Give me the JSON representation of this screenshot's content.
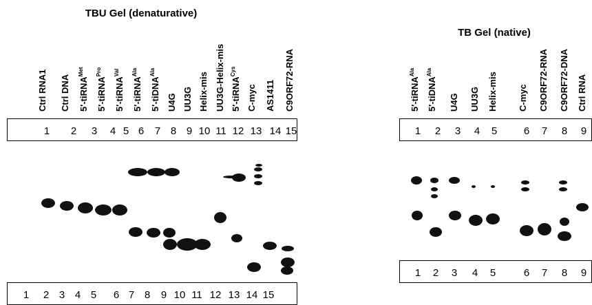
{
  "left_panel": {
    "title": "TBU Gel (denaturative)",
    "lanes": [
      {
        "label": "Ctrl RNA1"
      },
      {
        "label": "Ctrl DNA"
      },
      {
        "label": "5′-tiRNA",
        "sup": "Met"
      },
      {
        "label": "5′-tiRNA",
        "sup": "Pro"
      },
      {
        "label": "5′-tiRNA",
        "sup": "Val"
      },
      {
        "label": "5′-tiRNA",
        "sup": "Ala"
      },
      {
        "label": "5′-tiDNA",
        "sup": "Ala"
      },
      {
        "label": "U4G"
      },
      {
        "label": "UU3G"
      },
      {
        "label": "Helix-mis"
      },
      {
        "label": "UU3G-Helix-mis"
      },
      {
        "label": "5′-tiRNA",
        "sup": "Cys"
      },
      {
        "label": "C-myc"
      },
      {
        "label": "AS1411"
      },
      {
        "label": "C9ORF72-RNA"
      }
    ],
    "top_numbers": [
      1,
      2,
      3,
      4,
      5,
      6,
      7,
      8,
      9,
      10,
      11,
      12,
      13,
      14,
      15
    ],
    "bottom_numbers": [
      1,
      2,
      3,
      4,
      5,
      6,
      7,
      8,
      9,
      10,
      11,
      12,
      13,
      14,
      15
    ]
  },
  "right_panel": {
    "title": "TB Gel (native)",
    "lanes": [
      {
        "label": "5′-tiRNA",
        "sup": "Ala"
      },
      {
        "label": "5′-tiDNA",
        "sup": "Ala"
      },
      {
        "label": "U4G"
      },
      {
        "label": "UU3G"
      },
      {
        "label": "Helix-mis"
      },
      {
        "label": "C-myc"
      },
      {
        "label": "C9ORF72-RNA"
      },
      {
        "label": "C9ORF72-DNA"
      },
      {
        "label": "Ctrl RNA"
      }
    ],
    "top_numbers": [
      1,
      2,
      3,
      4,
      5,
      6,
      7,
      8,
      9
    ],
    "bottom_numbers": [
      1,
      2,
      3,
      4,
      5,
      6,
      7,
      8,
      9
    ]
  }
}
